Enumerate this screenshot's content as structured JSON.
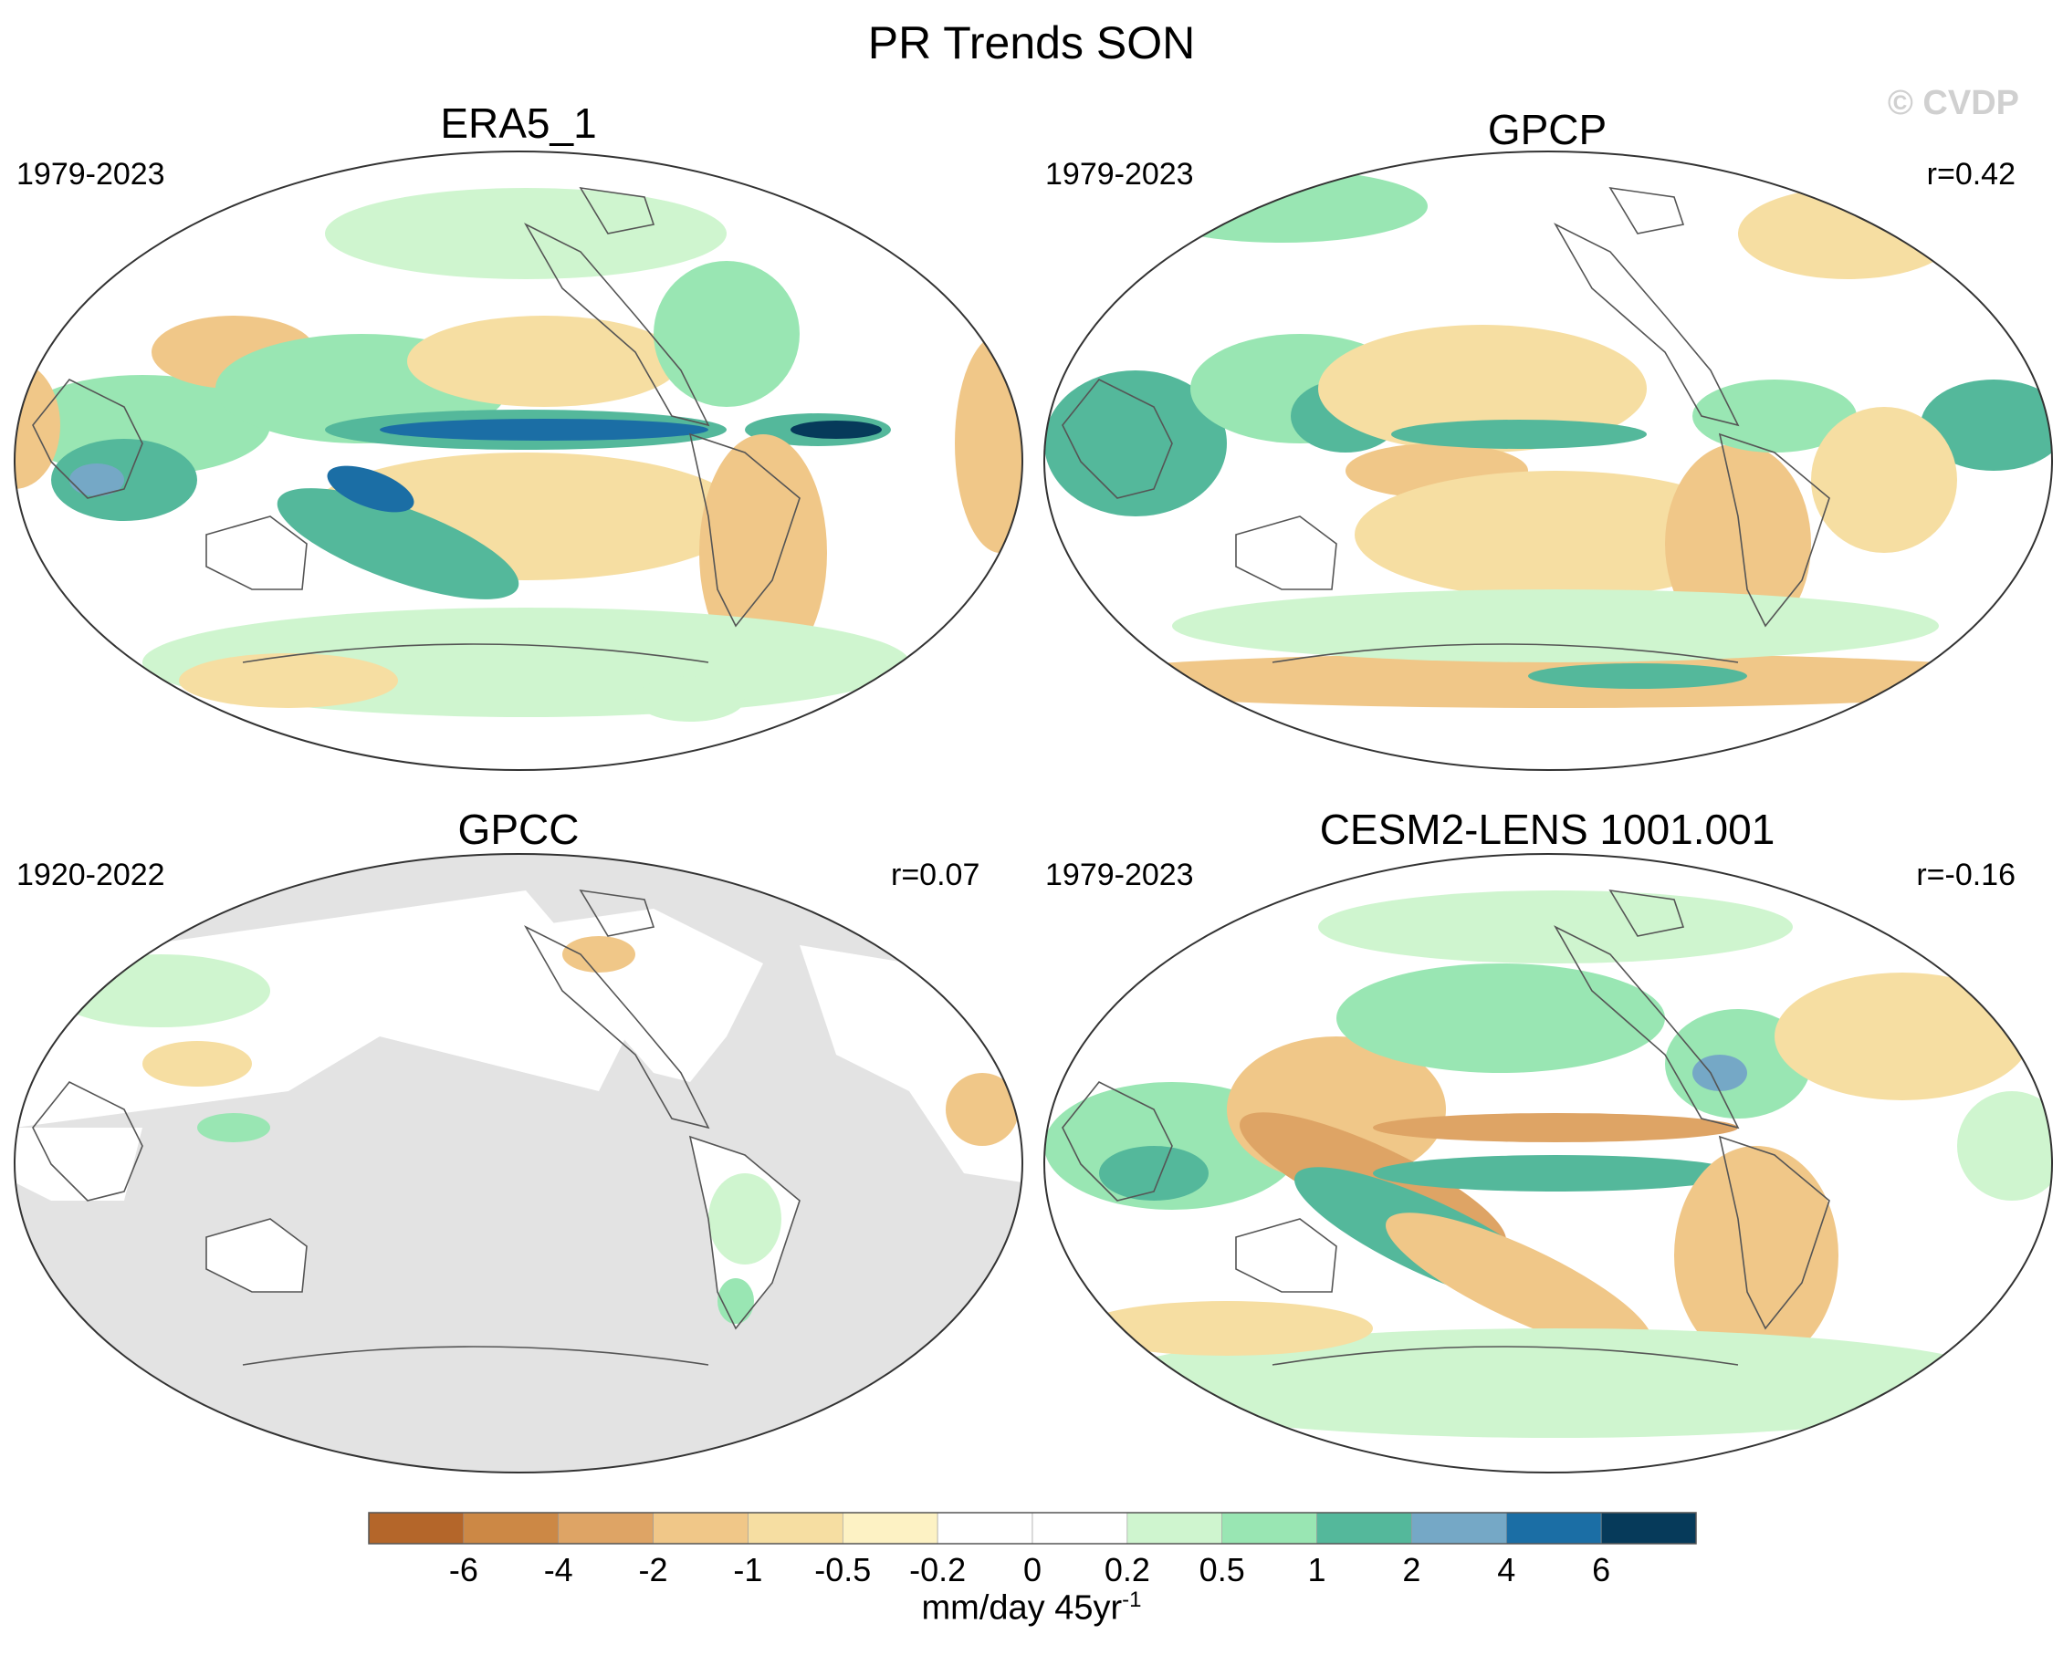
{
  "title": "PR Trends SON",
  "watermark": "© CVDP",
  "panels": [
    {
      "title": "ERA5_1",
      "period": "1979-2023",
      "corr": ""
    },
    {
      "title": "GPCP",
      "period": "1979-2023",
      "corr": "r=0.42"
    },
    {
      "title": "GPCC",
      "period": "1920-2022",
      "corr": "r=0.07"
    },
    {
      "title": "CESM2-LENS 1001.001",
      "period": "1979-2023",
      "corr": "r=-0.16"
    }
  ],
  "colorbar": {
    "labels": [
      "-6",
      "-4",
      "-2",
      "-1",
      "-0.5",
      "-0.2",
      "0",
      "0.2",
      "0.5",
      "1",
      "2",
      "4",
      "6"
    ],
    "colors": [
      "#b4662a",
      "#cc8845",
      "#dea465",
      "#f0c788",
      "#f6dea2",
      "#fdf2c4",
      "#ffffff",
      "#ffffff",
      "#cff5cf",
      "#99e6b3",
      "#54b89b",
      "#75a8c6",
      "#1b6ea5",
      "#063a5a"
    ],
    "units": "mm/day 45yr",
    "units_exp": "-1"
  },
  "colors": {
    "land_mask": "#e3e3e3",
    "coast": "#555555",
    "wet": "#99e6b3",
    "dry": "#f0c788",
    "very_wet": "#54b89b",
    "extreme_wet": "#1b6ea5",
    "extreme_dry": "#dea465"
  }
}
